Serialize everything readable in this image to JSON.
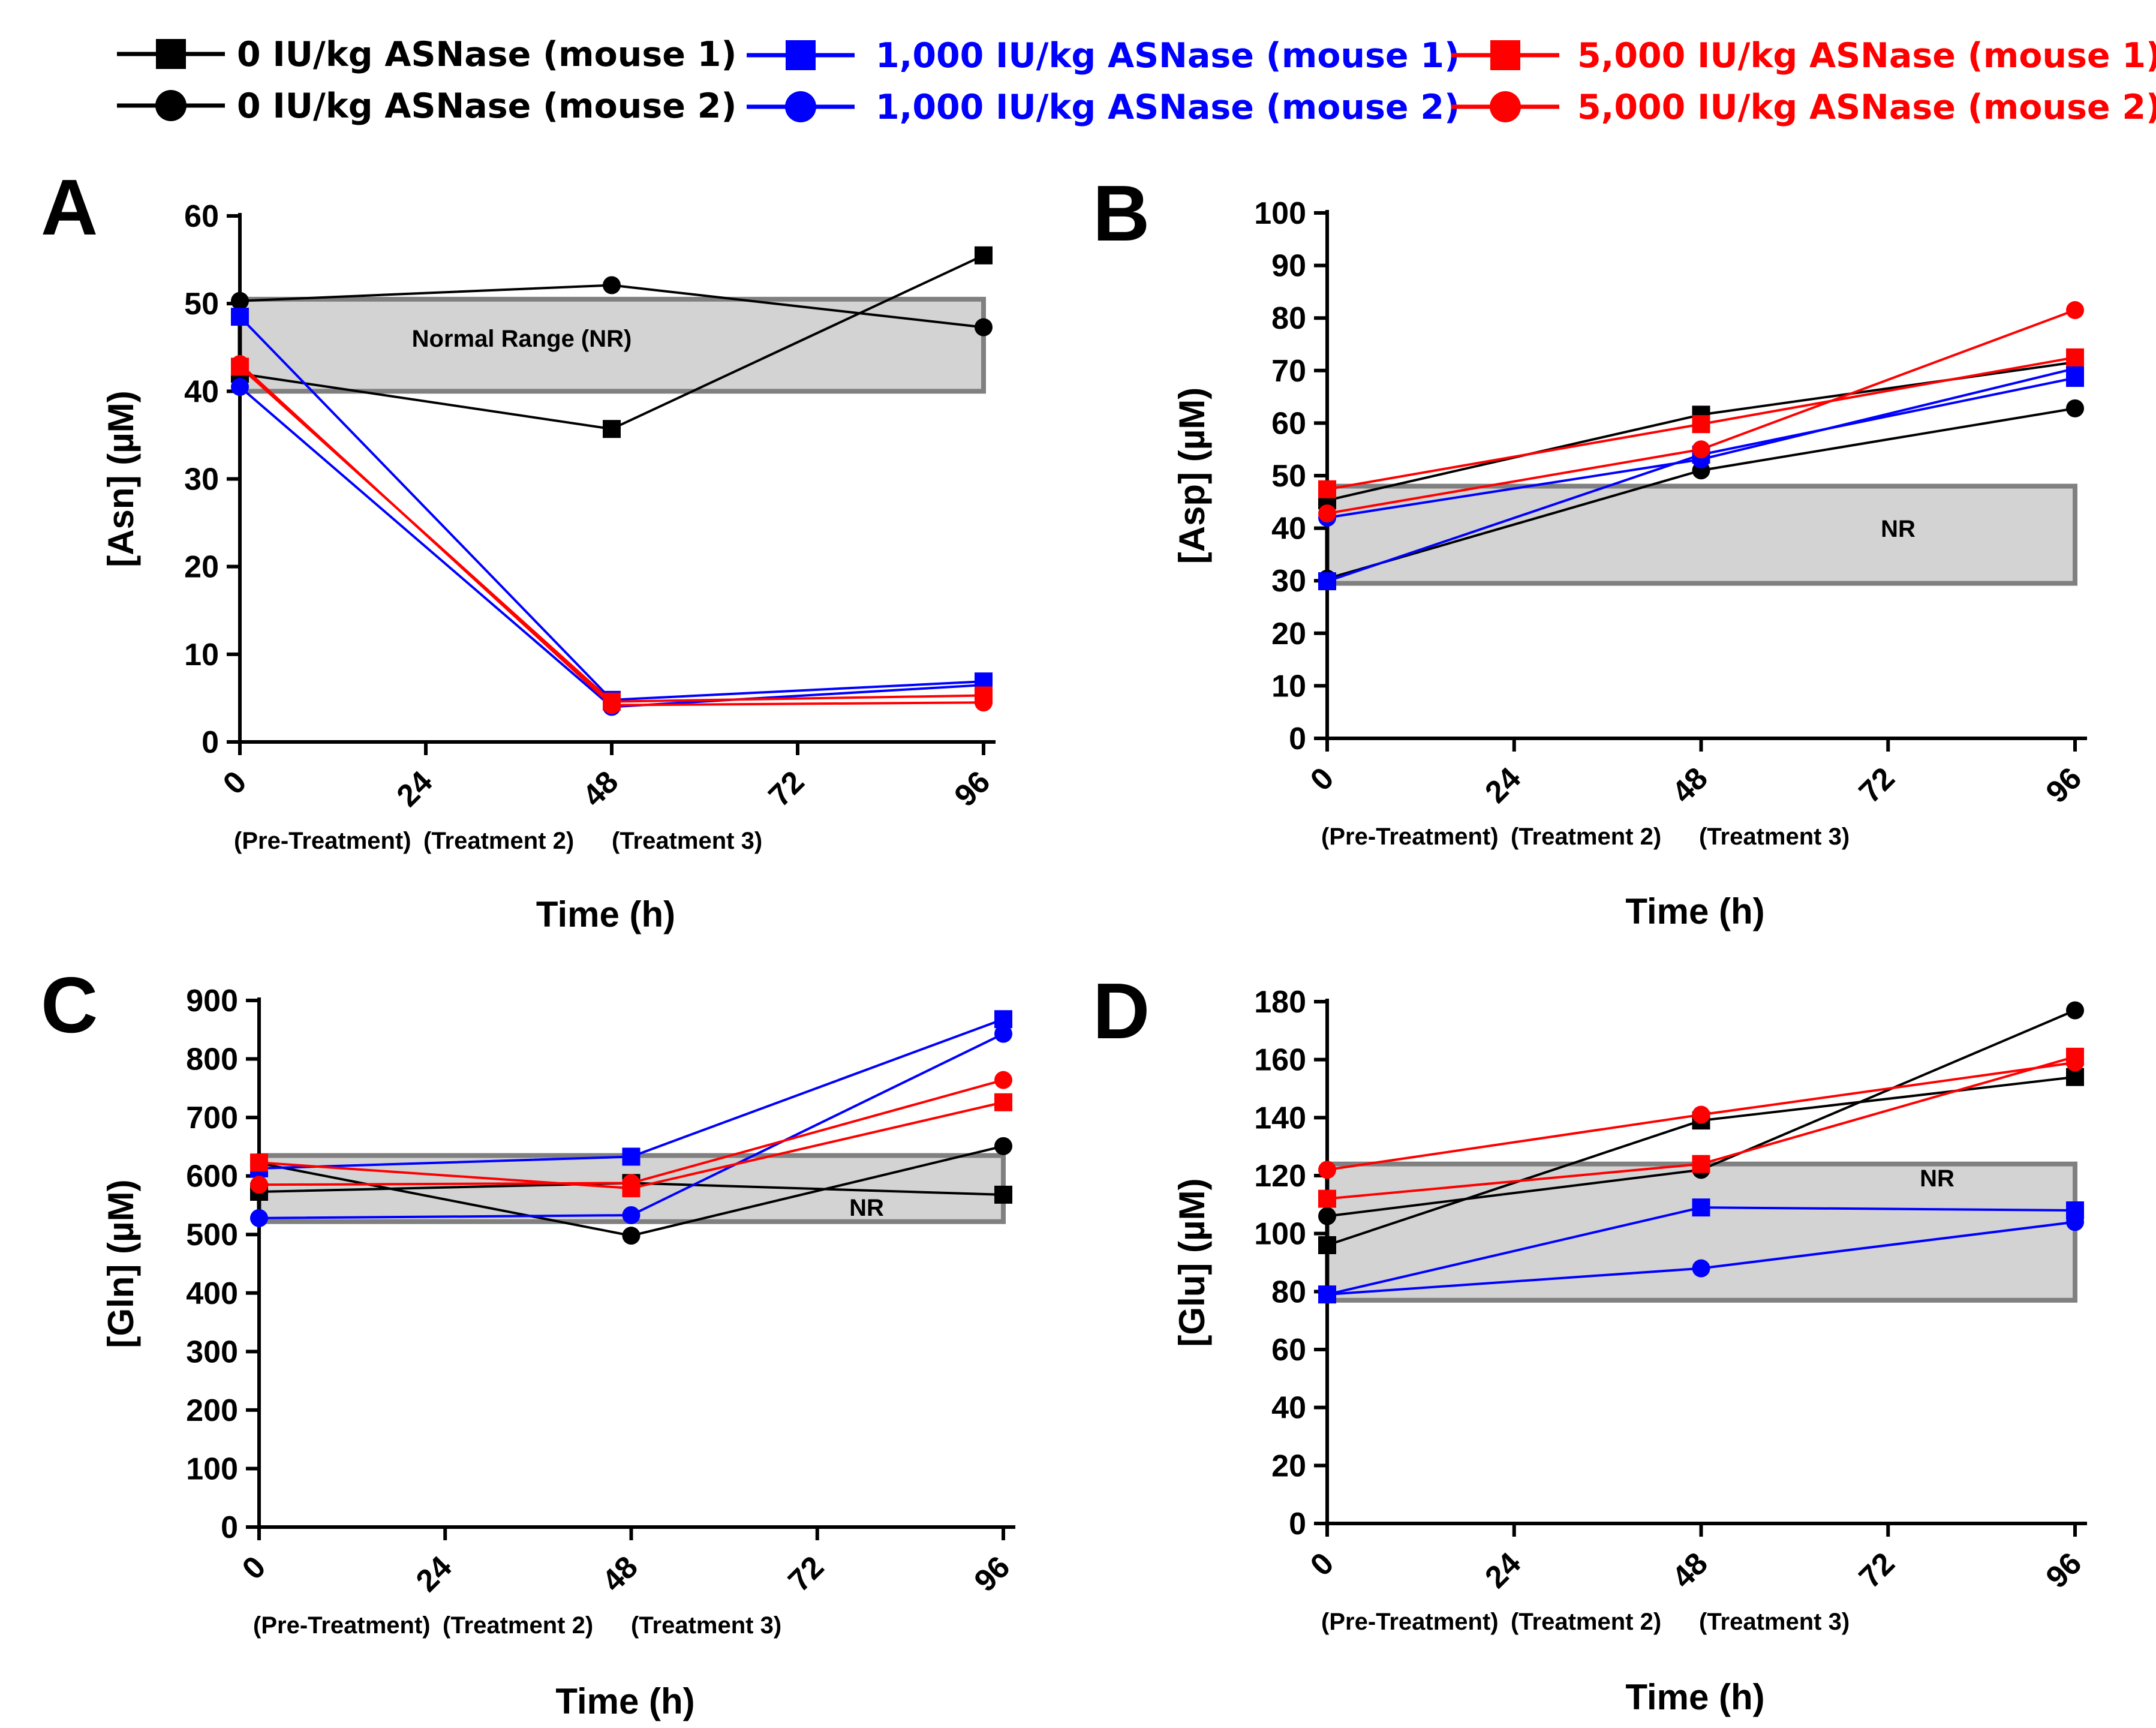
{
  "legend": [
    {
      "label": "0 IU/kg ASNase (mouse 1)",
      "color": "#000000",
      "marker": "square"
    },
    {
      "label": "0 IU/kg ASNase (mouse 2)",
      "color": "#000000",
      "marker": "circle"
    },
    {
      "label": "1,000 IU/kg ASNase (mouse 1)",
      "color": "#0000ff",
      "marker": "square"
    },
    {
      "label": "1,000 IU/kg ASNase (mouse 2)",
      "color": "#0000ff",
      "marker": "circle"
    },
    {
      "label": "5,000 IU/kg ASNase (mouse 1)",
      "color": "#ff0000",
      "marker": "square"
    },
    {
      "label": "5,000 IU/kg ASNase (mouse 2)",
      "color": "#ff0000",
      "marker": "circle"
    }
  ],
  "chart_data": [
    {
      "panel": "A",
      "type": "line",
      "ylabel": "[Asn] (µM)",
      "xlabel": "Time (h)",
      "ylim": [
        0,
        60
      ],
      "yticks": [
        0,
        10,
        20,
        30,
        40,
        50,
        60
      ],
      "xlim": [
        0,
        96
      ],
      "xticks": [
        0,
        24,
        48,
        72,
        96
      ],
      "xsublabels": [
        "(Pre-Treatment)",
        "(Treatment 2)",
        "(Treatment 3)"
      ],
      "normal_range": {
        "low": 40,
        "high": 50.5,
        "label": "Normal Range (NR)"
      },
      "x": [
        0,
        48,
        96
      ],
      "series": [
        {
          "name": "0 IU/kg ASNase (mouse 1)",
          "color": "#000000",
          "marker": "square",
          "values": [
            42,
            35.7,
            55.5
          ]
        },
        {
          "name": "0 IU/kg ASNase (mouse 2)",
          "color": "#000000",
          "marker": "circle",
          "values": [
            50.3,
            52.1,
            47.3
          ]
        },
        {
          "name": "1,000 IU/kg ASNase (mouse 1)",
          "color": "#0000ff",
          "marker": "square",
          "values": [
            48.5,
            4.8,
            6.9
          ]
        },
        {
          "name": "1,000 IU/kg ASNase (mouse 2)",
          "color": "#0000ff",
          "marker": "circle",
          "values": [
            40.5,
            4.0,
            6.5
          ]
        },
        {
          "name": "5,000 IU/kg ASNase (mouse 1)",
          "color": "#ff0000",
          "marker": "square",
          "values": [
            42.8,
            4.6,
            5.3
          ]
        },
        {
          "name": "5,000 IU/kg ASNase (mouse 2)",
          "color": "#ff0000",
          "marker": "circle",
          "values": [
            43.1,
            4.2,
            4.5
          ]
        }
      ]
    },
    {
      "panel": "B",
      "type": "line",
      "ylabel": "[Asp] (µM)",
      "xlabel": "Time (h)",
      "ylim": [
        0,
        100
      ],
      "yticks": [
        0,
        10,
        20,
        30,
        40,
        50,
        60,
        70,
        80,
        90,
        100
      ],
      "xlim": [
        0,
        96
      ],
      "xticks": [
        0,
        24,
        48,
        72,
        96
      ],
      "xsublabels": [
        "(Pre-Treatment)",
        "(Treatment 2)",
        "(Treatment 3)"
      ],
      "normal_range": {
        "low": 29.5,
        "high": 48,
        "label": "NR"
      },
      "x": [
        0,
        48,
        96
      ],
      "series": [
        {
          "name": "0 IU/kg ASNase (mouse 1)",
          "color": "#000000",
          "marker": "square",
          "values": [
            45.3,
            61.6,
            71.6
          ]
        },
        {
          "name": "0 IU/kg ASNase (mouse 2)",
          "color": "#000000",
          "marker": "circle",
          "values": [
            30.4,
            51.0,
            62.8
          ]
        },
        {
          "name": "1,000 IU/kg ASNase (mouse 1)",
          "color": "#0000ff",
          "marker": "square",
          "values": [
            29.9,
            54.0,
            68.6
          ]
        },
        {
          "name": "1,000 IU/kg ASNase (mouse 2)",
          "color": "#0000ff",
          "marker": "circle",
          "values": [
            42.0,
            53.1,
            70.4
          ]
        },
        {
          "name": "5,000 IU/kg ASNase (mouse 1)",
          "color": "#ff0000",
          "marker": "square",
          "values": [
            47.4,
            59.8,
            72.5
          ]
        },
        {
          "name": "5,000 IU/kg ASNase (mouse 2)",
          "color": "#ff0000",
          "marker": "circle",
          "values": [
            42.8,
            55.0,
            81.5
          ]
        }
      ]
    },
    {
      "panel": "C",
      "type": "line",
      "ylabel": "[Gln] (µM)",
      "xlabel": "Time (h)",
      "ylim": [
        0,
        900
      ],
      "yticks": [
        0,
        100,
        200,
        300,
        400,
        500,
        600,
        700,
        800,
        900
      ],
      "xlim": [
        0,
        96
      ],
      "xticks": [
        0,
        24,
        48,
        72,
        96
      ],
      "xsublabels": [
        "(Pre-Treatment)",
        "(Treatment 2)",
        "(Treatment 3)"
      ],
      "normal_range": {
        "low": 522,
        "high": 635,
        "label": "NR"
      },
      "x": [
        0,
        48,
        96
      ],
      "series": [
        {
          "name": "0 IU/kg ASNase (mouse 1)",
          "color": "#000000",
          "marker": "square",
          "values": [
            573,
            588,
            568
          ]
        },
        {
          "name": "0 IU/kg ASNase (mouse 2)",
          "color": "#000000",
          "marker": "circle",
          "values": [
            622,
            498,
            651
          ]
        },
        {
          "name": "1,000 IU/kg ASNase (mouse 1)",
          "color": "#0000ff",
          "marker": "square",
          "values": [
            613,
            633,
            868
          ]
        },
        {
          "name": "1,000 IU/kg ASNase (mouse 2)",
          "color": "#0000ff",
          "marker": "circle",
          "values": [
            528,
            533,
            843
          ]
        },
        {
          "name": "5,000 IU/kg ASNase (mouse 1)",
          "color": "#ff0000",
          "marker": "square",
          "values": [
            623,
            579,
            726
          ]
        },
        {
          "name": "5,000 IU/kg ASNase (mouse 2)",
          "color": "#ff0000",
          "marker": "circle",
          "values": [
            585,
            588,
            764
          ]
        }
      ]
    },
    {
      "panel": "D",
      "type": "line",
      "ylabel": "[Glu] (µM)",
      "xlabel": "Time (h)",
      "ylim": [
        0,
        180
      ],
      "yticks": [
        0,
        20,
        40,
        60,
        80,
        100,
        120,
        140,
        160,
        180
      ],
      "xlim": [
        0,
        96
      ],
      "xticks": [
        0,
        24,
        48,
        72,
        96
      ],
      "xsublabels": [
        "(Pre-Treatment)",
        "(Treatment 2)",
        "(Treatment 3)"
      ],
      "normal_range": {
        "low": 77,
        "high": 124,
        "label": "NR"
      },
      "x": [
        0,
        48,
        96
      ],
      "series": [
        {
          "name": "0 IU/kg ASNase (mouse 1)",
          "color": "#000000",
          "marker": "square",
          "values": [
            96,
            139,
            154
          ]
        },
        {
          "name": "0 IU/kg ASNase (mouse 2)",
          "color": "#000000",
          "marker": "circle",
          "values": [
            106,
            122,
            177
          ]
        },
        {
          "name": "1,000 IU/kg ASNase (mouse 1)",
          "color": "#0000ff",
          "marker": "square",
          "values": [
            79,
            109,
            108
          ]
        },
        {
          "name": "1,000 IU/kg ASNase (mouse 2)",
          "color": "#0000ff",
          "marker": "circle",
          "values": [
            79,
            88,
            104
          ]
        },
        {
          "name": "5,000 IU/kg ASNase (mouse 1)",
          "color": "#ff0000",
          "marker": "square",
          "values": [
            112,
            124,
            161
          ]
        },
        {
          "name": "5,000 IU/kg ASNase (mouse 2)",
          "color": "#ff0000",
          "marker": "circle",
          "values": [
            122,
            141,
            159
          ]
        }
      ]
    }
  ]
}
